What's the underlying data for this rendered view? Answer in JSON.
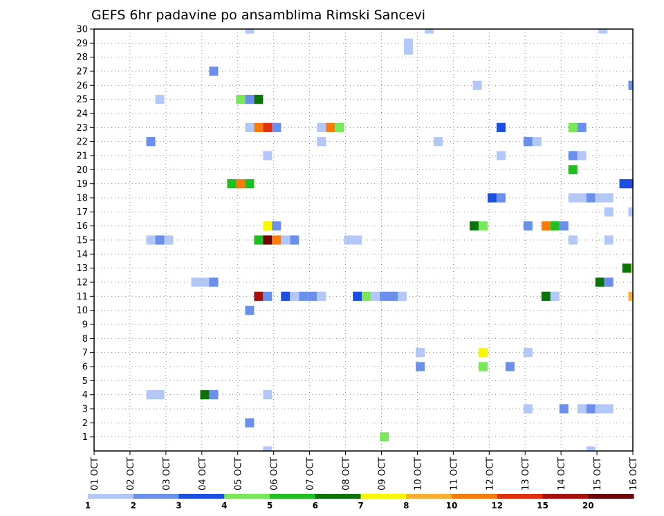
{
  "chart_data": {
    "type": "heatmap",
    "title": "GEFS 6hr padavine po ansamblima Rimski Sancevi",
    "x_ticks": [
      "01 OCT",
      "02 OCT",
      "03 OCT",
      "04 OCT",
      "05 OCT",
      "06 OCT",
      "07 OCT",
      "08 OCT",
      "09 OCT",
      "10 OCT",
      "11 OCT",
      "12 OCT",
      "13 OCT",
      "14 OCT",
      "15 OCT",
      "16 OCT"
    ],
    "y_ticks": [
      "1",
      "2",
      "3",
      "4",
      "5",
      "6",
      "7",
      "8",
      "9",
      "10",
      "11",
      "12",
      "13",
      "14",
      "15",
      "16",
      "17",
      "18",
      "19",
      "20",
      "21",
      "22",
      "23",
      "24",
      "25",
      "26",
      "27",
      "28",
      "29",
      "30"
    ],
    "x_range_days": [
      0,
      15
    ],
    "y_range_members": [
      0,
      30
    ],
    "grid": true,
    "colorbar": {
      "colors": [
        "#b4c8f8",
        "#6a90ec",
        "#1c4ee0",
        "#7ae65a",
        "#20be20",
        "#0c720c",
        "#f8f800",
        "#f8b034",
        "#f87c0c",
        "#e0300c",
        "#a8100c",
        "#6c0404"
      ],
      "labels": [
        "1",
        "2",
        "3",
        "4",
        "5",
        "6",
        "7",
        "8",
        "10",
        "12",
        "15",
        "20"
      ]
    },
    "cells": [
      {
        "d": 4.33,
        "m": 30,
        "c": 1
      },
      {
        "d": 9.33,
        "m": 30,
        "c": 1
      },
      {
        "d": 14.17,
        "m": 30,
        "c": 1
      },
      {
        "d": 8.75,
        "m": 29,
        "c": 1
      },
      {
        "d": 8.75,
        "m": 28.5,
        "c": 1
      },
      {
        "d": 3.33,
        "m": 27,
        "c": 2
      },
      {
        "d": 10.67,
        "m": 26,
        "c": 1
      },
      {
        "d": 15,
        "m": 26,
        "c": 2
      },
      {
        "d": 1.83,
        "m": 25,
        "c": 1
      },
      {
        "d": 4.08,
        "m": 25,
        "c": 4
      },
      {
        "d": 4.33,
        "m": 25,
        "c": 2
      },
      {
        "d": 4.58,
        "m": 25,
        "c": 6
      },
      {
        "d": 4.33,
        "m": 23,
        "c": 1
      },
      {
        "d": 4.58,
        "m": 23,
        "c": 9
      },
      {
        "d": 4.83,
        "m": 23,
        "c": 10
      },
      {
        "d": 5.08,
        "m": 23,
        "c": 2
      },
      {
        "d": 6.33,
        "m": 23,
        "c": 1
      },
      {
        "d": 6.58,
        "m": 23,
        "c": 9
      },
      {
        "d": 6.83,
        "m": 23,
        "c": 4
      },
      {
        "d": 11.33,
        "m": 23,
        "c": 3
      },
      {
        "d": 13.33,
        "m": 23,
        "c": 4
      },
      {
        "d": 13.58,
        "m": 23,
        "c": 2
      },
      {
        "d": 1.58,
        "m": 22,
        "c": 2
      },
      {
        "d": 6.33,
        "m": 22,
        "c": 1
      },
      {
        "d": 9.58,
        "m": 22,
        "c": 1
      },
      {
        "d": 12.08,
        "m": 22,
        "c": 2
      },
      {
        "d": 12.33,
        "m": 22,
        "c": 1
      },
      {
        "d": 4.83,
        "m": 21,
        "c": 1
      },
      {
        "d": 11.33,
        "m": 21,
        "c": 1
      },
      {
        "d": 13.33,
        "m": 21,
        "c": 2
      },
      {
        "d": 13.58,
        "m": 21,
        "c": 1
      },
      {
        "d": 13.33,
        "m": 20,
        "c": 5
      },
      {
        "d": 3.83,
        "m": 19,
        "c": 5
      },
      {
        "d": 4.08,
        "m": 19,
        "c": 9
      },
      {
        "d": 4.33,
        "m": 19,
        "c": 5
      },
      {
        "d": 15,
        "m": 19,
        "c": 3
      },
      {
        "d": 14.75,
        "m": 19,
        "c": 3
      },
      {
        "d": 11.08,
        "m": 18,
        "c": 3
      },
      {
        "d": 11.33,
        "m": 18,
        "c": 2
      },
      {
        "d": 13.33,
        "m": 18,
        "c": 1
      },
      {
        "d": 13.58,
        "m": 18,
        "c": 1
      },
      {
        "d": 13.83,
        "m": 18,
        "c": 2
      },
      {
        "d": 14.08,
        "m": 18,
        "c": 1
      },
      {
        "d": 14.33,
        "m": 18,
        "c": 1
      },
      {
        "d": 14.33,
        "m": 17,
        "c": 1
      },
      {
        "d": 15,
        "m": 17,
        "c": 1
      },
      {
        "d": 4.83,
        "m": 16,
        "c": 7
      },
      {
        "d": 5.08,
        "m": 16,
        "c": 2
      },
      {
        "d": 10.58,
        "m": 16,
        "c": 6
      },
      {
        "d": 10.83,
        "m": 16,
        "c": 4
      },
      {
        "d": 12.08,
        "m": 16,
        "c": 2
      },
      {
        "d": 12.58,
        "m": 16,
        "c": 9
      },
      {
        "d": 12.83,
        "m": 16,
        "c": 5
      },
      {
        "d": 13.08,
        "m": 16,
        "c": 2
      },
      {
        "d": 1.58,
        "m": 15,
        "c": 1
      },
      {
        "d": 1.83,
        "m": 15,
        "c": 2
      },
      {
        "d": 2.08,
        "m": 15,
        "c": 1
      },
      {
        "d": 4.58,
        "m": 15,
        "c": 5
      },
      {
        "d": 4.83,
        "m": 15,
        "c": 12
      },
      {
        "d": 5.08,
        "m": 15,
        "c": 9
      },
      {
        "d": 5.33,
        "m": 15,
        "c": 1
      },
      {
        "d": 5.58,
        "m": 15,
        "c": 2
      },
      {
        "d": 7.08,
        "m": 15,
        "c": 1
      },
      {
        "d": 7.33,
        "m": 15,
        "c": 1
      },
      {
        "d": 13.33,
        "m": 15,
        "c": 1
      },
      {
        "d": 14.33,
        "m": 15,
        "c": 1
      },
      {
        "d": 15,
        "m": 13,
        "c": 7
      },
      {
        "d": 14.83,
        "m": 13,
        "c": 6
      },
      {
        "d": 2.83,
        "m": 12,
        "c": 1
      },
      {
        "d": 3.08,
        "m": 12,
        "c": 1
      },
      {
        "d": 3.33,
        "m": 12,
        "c": 2
      },
      {
        "d": 14.08,
        "m": 12,
        "c": 6
      },
      {
        "d": 14.33,
        "m": 12,
        "c": 2
      },
      {
        "d": 4.58,
        "m": 11,
        "c": 11
      },
      {
        "d": 4.83,
        "m": 11,
        "c": 2
      },
      {
        "d": 5.33,
        "m": 11,
        "c": 3
      },
      {
        "d": 5.58,
        "m": 11,
        "c": 1
      },
      {
        "d": 5.83,
        "m": 11,
        "c": 2
      },
      {
        "d": 6.08,
        "m": 11,
        "c": 2
      },
      {
        "d": 6.33,
        "m": 11,
        "c": 1
      },
      {
        "d": 7.33,
        "m": 11,
        "c": 3
      },
      {
        "d": 7.58,
        "m": 11,
        "c": 4
      },
      {
        "d": 7.83,
        "m": 11,
        "c": 1
      },
      {
        "d": 8.08,
        "m": 11,
        "c": 2
      },
      {
        "d": 8.33,
        "m": 11,
        "c": 2
      },
      {
        "d": 8.58,
        "m": 11,
        "c": 1
      },
      {
        "d": 12.58,
        "m": 11,
        "c": 6
      },
      {
        "d": 12.83,
        "m": 11,
        "c": 1
      },
      {
        "d": 15,
        "m": 11,
        "c": 8
      },
      {
        "d": 4.33,
        "m": 10,
        "c": 2
      },
      {
        "d": 9.08,
        "m": 7,
        "c": 1
      },
      {
        "d": 10.83,
        "m": 7,
        "c": 7
      },
      {
        "d": 12.08,
        "m": 7,
        "c": 1
      },
      {
        "d": 9.08,
        "m": 6,
        "c": 2
      },
      {
        "d": 10.83,
        "m": 6,
        "c": 4
      },
      {
        "d": 11.58,
        "m": 6,
        "c": 2
      },
      {
        "d": 1.58,
        "m": 4,
        "c": 1
      },
      {
        "d": 1.83,
        "m": 4,
        "c": 1
      },
      {
        "d": 3.08,
        "m": 4,
        "c": 6
      },
      {
        "d": 3.33,
        "m": 4,
        "c": 2
      },
      {
        "d": 4.83,
        "m": 4,
        "c": 1
      },
      {
        "d": 12.08,
        "m": 3,
        "c": 1
      },
      {
        "d": 13.08,
        "m": 3,
        "c": 2
      },
      {
        "d": 13.58,
        "m": 3,
        "c": 1
      },
      {
        "d": 13.83,
        "m": 3,
        "c": 2
      },
      {
        "d": 14.08,
        "m": 3,
        "c": 1
      },
      {
        "d": 14.33,
        "m": 3,
        "c": 1
      },
      {
        "d": 4.33,
        "m": 2,
        "c": 2
      },
      {
        "d": 8.08,
        "m": 1,
        "c": 4
      },
      {
        "d": 4.83,
        "m": 0,
        "c": 1
      },
      {
        "d": 13.83,
        "m": 0,
        "c": 1
      }
    ]
  }
}
